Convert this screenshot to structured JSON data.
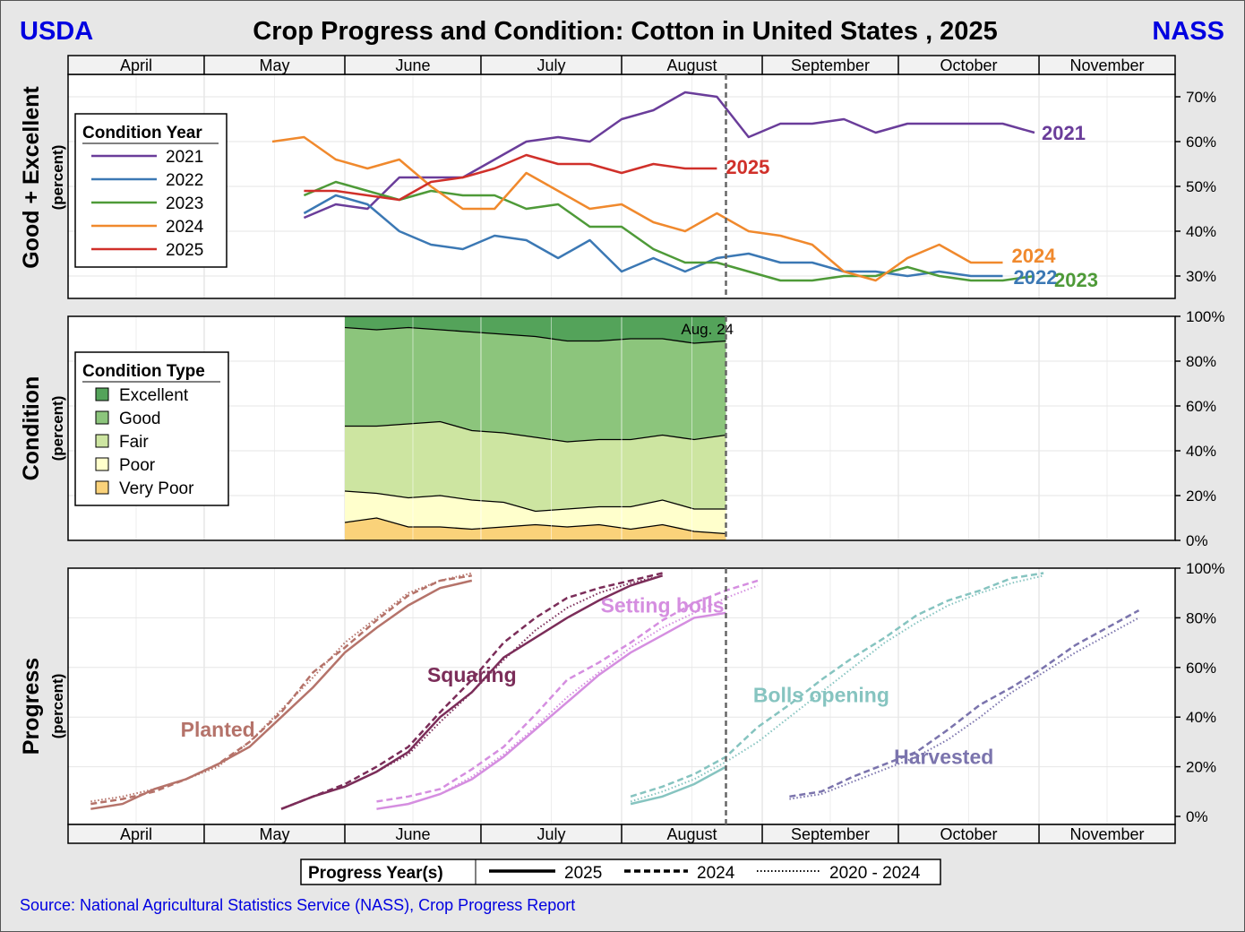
{
  "header": {
    "left": "USDA",
    "title": "Crop Progress and Condition: Cotton in United States , 2025",
    "right": "NASS"
  },
  "source": "Source: National Agricultural Statistics Service (NASS), Crop Progress Report",
  "months": [
    "April",
    "May",
    "June",
    "July",
    "August",
    "September",
    "October",
    "November"
  ],
  "colors": {
    "header_blue": "#0000e0",
    "y2021": "#6a3d9a",
    "y2022": "#3b78b4",
    "y2023": "#4e9a38",
    "y2024": "#f0892d",
    "y2025": "#d0302a",
    "excellent": "#54a35a",
    "good": "#8cc57c",
    "fair": "#cde5a1",
    "poor": "#ffffcc",
    "very_poor": "#fad27a",
    "planted": "#b5736a",
    "squaring": "#7b2d59",
    "setting_bolls": "#d58ee0",
    "bolls_opening": "#86c4c0",
    "harvested": "#7b74ad"
  },
  "chart_data": [
    {
      "type": "line",
      "panel": "condition_good_excellent",
      "ylabel": "Good + Excellent",
      "ylabel_sub": "(percent)",
      "ylim": [
        25,
        75
      ],
      "yticks": [
        "30%",
        "40%",
        "50%",
        "60%",
        "70%"
      ],
      "legend": {
        "title": "Condition Year",
        "position": "top-left"
      },
      "current_week_marker": "2025-08-24",
      "series": [
        {
          "name": "2021",
          "end_label": "2021",
          "x": [
            "2025-05-23",
            "2025-05-30",
            "2025-06-06",
            "2025-06-13",
            "2025-06-20",
            "2025-06-27",
            "2025-07-04",
            "2025-07-11",
            "2025-07-18",
            "2025-07-25",
            "2025-08-01",
            "2025-08-08",
            "2025-08-15",
            "2025-08-22",
            "2025-08-29",
            "2025-09-05",
            "2025-09-12",
            "2025-09-19",
            "2025-09-26",
            "2025-10-03",
            "2025-10-10",
            "2025-10-17",
            "2025-10-24",
            "2025-10-31"
          ],
          "values": [
            43,
            46,
            45,
            52,
            52,
            52,
            56,
            60,
            61,
            60,
            65,
            67,
            71,
            70,
            61,
            64,
            64,
            65,
            62,
            64,
            64,
            64,
            64,
            62
          ]
        },
        {
          "name": "2022",
          "end_label": "2022",
          "x": [
            "2025-05-23",
            "2025-05-30",
            "2025-06-06",
            "2025-06-13",
            "2025-06-20",
            "2025-06-27",
            "2025-07-04",
            "2025-07-11",
            "2025-07-18",
            "2025-07-25",
            "2025-08-01",
            "2025-08-08",
            "2025-08-15",
            "2025-08-22",
            "2025-08-29",
            "2025-09-05",
            "2025-09-12",
            "2025-09-19",
            "2025-09-26",
            "2025-10-03",
            "2025-10-10",
            "2025-10-17",
            "2025-10-24"
          ],
          "values": [
            44,
            48,
            46,
            40,
            37,
            36,
            39,
            38,
            34,
            38,
            31,
            34,
            31,
            34,
            35,
            33,
            33,
            31,
            31,
            30,
            31,
            30,
            30
          ]
        },
        {
          "name": "2023",
          "end_label": "2023",
          "x": [
            "2025-05-23",
            "2025-05-30",
            "2025-06-06",
            "2025-06-13",
            "2025-06-20",
            "2025-06-27",
            "2025-07-04",
            "2025-07-11",
            "2025-07-18",
            "2025-07-25",
            "2025-08-01",
            "2025-08-08",
            "2025-08-15",
            "2025-08-22",
            "2025-08-29",
            "2025-09-05",
            "2025-09-12",
            "2025-09-19",
            "2025-09-26",
            "2025-10-03",
            "2025-10-10",
            "2025-10-17",
            "2025-10-24",
            "2025-10-31"
          ],
          "values": [
            48,
            51,
            49,
            47,
            49,
            48,
            48,
            45,
            46,
            41,
            41,
            36,
            33,
            33,
            31,
            29,
            29,
            30,
            30,
            32,
            30,
            29,
            29,
            30
          ]
        },
        {
          "name": "2024",
          "end_label": "2024",
          "x": [
            "2025-05-16",
            "2025-05-23",
            "2025-05-30",
            "2025-06-06",
            "2025-06-13",
            "2025-06-20",
            "2025-06-27",
            "2025-07-04",
            "2025-07-11",
            "2025-07-18",
            "2025-07-25",
            "2025-08-01",
            "2025-08-08",
            "2025-08-15",
            "2025-08-22",
            "2025-08-29",
            "2025-09-05",
            "2025-09-12",
            "2025-09-19",
            "2025-09-26",
            "2025-10-03",
            "2025-10-10",
            "2025-10-17",
            "2025-10-24"
          ],
          "values": [
            60,
            61,
            56,
            54,
            56,
            50,
            45,
            45,
            53,
            49,
            45,
            46,
            42,
            40,
            44,
            40,
            39,
            37,
            31,
            29,
            34,
            37,
            33,
            33
          ]
        },
        {
          "name": "2025",
          "end_label": "2025",
          "x": [
            "2025-05-23",
            "2025-05-30",
            "2025-06-06",
            "2025-06-13",
            "2025-06-20",
            "2025-06-27",
            "2025-07-04",
            "2025-07-11",
            "2025-07-18",
            "2025-07-25",
            "2025-08-01",
            "2025-08-08",
            "2025-08-15",
            "2025-08-22"
          ],
          "values": [
            49,
            49,
            48,
            47,
            51,
            52,
            54,
            57,
            55,
            55,
            53,
            55,
            54,
            54
          ]
        }
      ]
    },
    {
      "type": "area",
      "panel": "condition_type",
      "ylabel": "Condition",
      "ylabel_sub": "(percent)",
      "ylim": [
        0,
        100
      ],
      "yticks": [
        "0%",
        "20%",
        "40%",
        "60%",
        "80%",
        "100%"
      ],
      "legend": {
        "title": "Condition Type",
        "position": "middle-left"
      },
      "annotation": "Aug. 24",
      "x": [
        "2025-06-01",
        "2025-06-08",
        "2025-06-15",
        "2025-06-22",
        "2025-06-29",
        "2025-07-06",
        "2025-07-13",
        "2025-07-20",
        "2025-07-27",
        "2025-08-03",
        "2025-08-10",
        "2025-08-17",
        "2025-08-24"
      ],
      "series": [
        {
          "name": "Very Poor",
          "values": [
            8,
            10,
            6,
            6,
            5,
            6,
            7,
            6,
            7,
            5,
            7,
            4,
            3
          ]
        },
        {
          "name": "Poor",
          "values": [
            14,
            11,
            13,
            14,
            13,
            11,
            6,
            8,
            8,
            10,
            11,
            10,
            11
          ]
        },
        {
          "name": "Fair",
          "values": [
            29,
            30,
            33,
            33,
            31,
            31,
            33,
            30,
            30,
            30,
            29,
            31,
            33
          ]
        },
        {
          "name": "Good",
          "values": [
            44,
            43,
            43,
            41,
            44,
            44,
            45,
            45,
            44,
            45,
            43,
            43,
            42
          ]
        },
        {
          "name": "Excellent",
          "values": [
            5,
            6,
            5,
            6,
            7,
            8,
            9,
            11,
            11,
            10,
            10,
            12,
            11
          ]
        }
      ]
    },
    {
      "type": "line",
      "panel": "progress",
      "ylabel": "Progress",
      "ylabel_sub": "(percent)",
      "ylim": [
        0,
        100
      ],
      "yticks": [
        "0%",
        "20%",
        "40%",
        "60%",
        "80%",
        "100%"
      ],
      "legend": {
        "title": "Progress Year(s)",
        "entries": [
          "2025",
          "2024",
          "2020 - 2024"
        ],
        "position": "bottom"
      },
      "stages": [
        {
          "name": "Planted",
          "x": [
            "2025-04-06",
            "2025-04-13",
            "2025-04-20",
            "2025-04-27",
            "2025-05-04",
            "2025-05-11",
            "2025-05-18",
            "2025-05-25",
            "2025-06-01",
            "2025-06-08",
            "2025-06-15",
            "2025-06-22",
            "2025-06-29"
          ],
          "y2025": [
            3,
            5,
            11,
            15,
            21,
            28,
            40,
            52,
            66,
            76,
            85,
            92,
            95
          ],
          "y2024": [
            5,
            7,
            10,
            15,
            21,
            30,
            42,
            58,
            68,
            79,
            89,
            95,
            97
          ],
          "avg": [
            6,
            8,
            11,
            15,
            20,
            30,
            43,
            56,
            70,
            80,
            90,
            95,
            98
          ]
        },
        {
          "name": "Squaring",
          "x": [
            "2025-05-18",
            "2025-05-25",
            "2025-06-01",
            "2025-06-08",
            "2025-06-15",
            "2025-06-22",
            "2025-06-29",
            "2025-07-06",
            "2025-07-13",
            "2025-07-20",
            "2025-07-27",
            "2025-08-03",
            "2025-08-10"
          ],
          "y2025": [
            3,
            8,
            12,
            18,
            26,
            40,
            50,
            64,
            72,
            80,
            87,
            93,
            97
          ],
          "y2024": [
            3,
            8,
            13,
            20,
            28,
            42,
            55,
            70,
            80,
            88,
            92,
            95,
            98
          ],
          "avg": [
            3,
            8,
            12,
            18,
            25,
            38,
            50,
            63,
            75,
            84,
            90,
            94,
            97
          ]
        },
        {
          "name": "Setting bolls",
          "x": [
            "2025-06-08",
            "2025-06-15",
            "2025-06-22",
            "2025-06-29",
            "2025-07-06",
            "2025-07-13",
            "2025-07-20",
            "2025-07-27",
            "2025-08-03",
            "2025-08-10",
            "2025-08-17",
            "2025-08-24",
            "2025-08-31"
          ],
          "y2025": [
            3,
            5,
            9,
            15,
            24,
            35,
            46,
            57,
            66,
            73,
            80,
            82,
            null
          ],
          "y2024": [
            6,
            8,
            11,
            19,
            28,
            41,
            55,
            62,
            70,
            79,
            86,
            91,
            95
          ],
          "avg": [
            3,
            5,
            9,
            16,
            25,
            36,
            48,
            58,
            68,
            76,
            82,
            88,
            93
          ]
        },
        {
          "name": "Bolls opening",
          "x": [
            "2025-08-03",
            "2025-08-10",
            "2025-08-17",
            "2025-08-24",
            "2025-08-31",
            "2025-09-07",
            "2025-09-14",
            "2025-09-21",
            "2025-09-28",
            "2025-10-05",
            "2025-10-12",
            "2025-10-19",
            "2025-10-26",
            "2025-11-02"
          ],
          "y2025": [
            5,
            8,
            13,
            20,
            null,
            null,
            null,
            null,
            null,
            null,
            null,
            null,
            null,
            null
          ],
          "y2024": [
            8,
            12,
            17,
            24,
            36,
            45,
            55,
            64,
            72,
            81,
            87,
            91,
            96,
            98
          ],
          "avg": [
            6,
            10,
            15,
            22,
            30,
            40,
            50,
            60,
            70,
            78,
            85,
            90,
            94,
            97
          ]
        },
        {
          "name": "Harvested",
          "x": [
            "2025-09-07",
            "2025-09-14",
            "2025-09-21",
            "2025-09-28",
            "2025-10-05",
            "2025-10-12",
            "2025-10-19",
            "2025-10-26",
            "2025-11-02",
            "2025-11-09",
            "2025-11-16",
            "2025-11-23"
          ],
          "y2024": [
            8,
            10,
            16,
            21,
            26,
            35,
            45,
            52,
            60,
            69,
            76,
            83
          ],
          "avg": [
            7,
            9,
            14,
            19,
            24,
            31,
            40,
            50,
            58,
            66,
            73,
            80
          ]
        }
      ]
    }
  ]
}
